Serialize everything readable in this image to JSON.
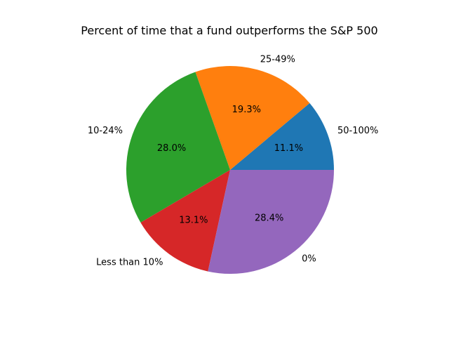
{
  "chart_data": {
    "type": "pie",
    "title": "Percent of time that a fund outperforms the S&P 500",
    "categories": [
      "50-100%",
      "25-49%",
      "10-24%",
      "Less than 10%",
      "0%"
    ],
    "values": [
      11.1,
      19.3,
      28.0,
      13.1,
      28.4
    ],
    "value_labels": [
      "11.1%",
      "19.3%",
      "28.0%",
      "13.1%",
      "28.4%"
    ],
    "colors": [
      "#1f77b4",
      "#ff7f0e",
      "#2ca02c",
      "#d62728",
      "#9467bd"
    ],
    "start_angle_deg": 0,
    "direction": "counterclockwise"
  }
}
